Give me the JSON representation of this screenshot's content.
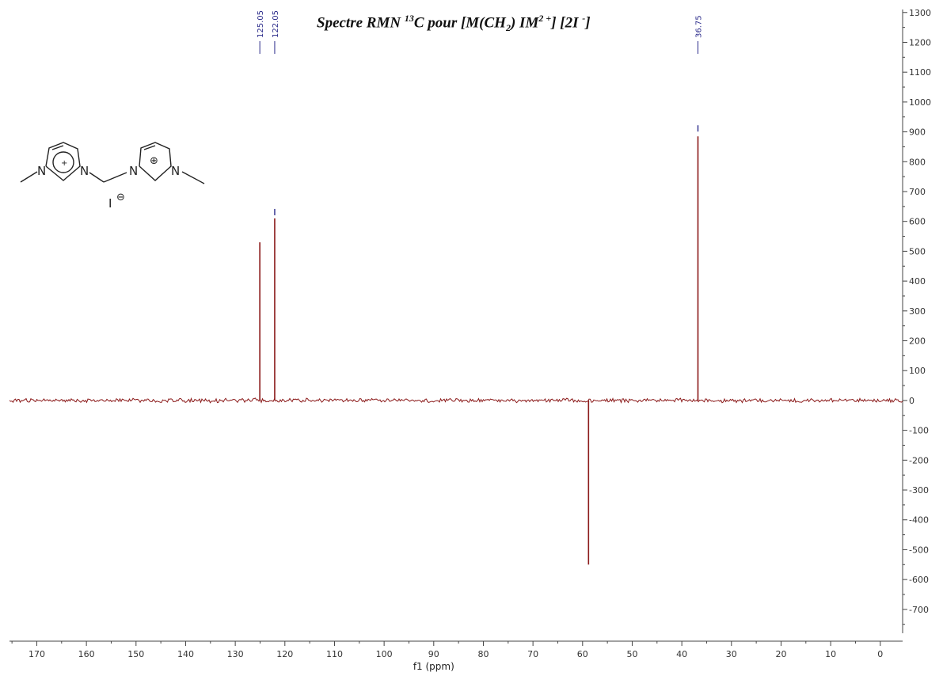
{
  "chart_data": {
    "type": "line",
    "title": {
      "prefix": "Spectre RMN ",
      "isotope": "13",
      "nucleus": "C pour [M(CH",
      "subscript": "2",
      "middle": ") IM",
      "superscript": "2 +",
      "suffix": "] [2I ",
      "superscript2": "-",
      "end": "]"
    },
    "xlabel": "f1 (ppm)",
    "ylabel": "",
    "x_reversed": true,
    "xlim": [
      175.5,
      -4.5
    ],
    "ylim": [
      -780,
      1310
    ],
    "x_ticks": [
      170,
      160,
      150,
      140,
      130,
      120,
      110,
      100,
      90,
      80,
      70,
      60,
      50,
      40,
      30,
      20,
      10,
      0
    ],
    "y_ticks": [
      1300,
      1200,
      1100,
      1000,
      900,
      800,
      700,
      600,
      500,
      400,
      300,
      200,
      100,
      0,
      -100,
      -200,
      -300,
      -400,
      -500,
      -600,
      -700
    ],
    "peaks": [
      {
        "x": 125.05,
        "y": 530
      },
      {
        "x": 122.05,
        "y": 610
      },
      {
        "x": 58.8,
        "y": -550
      },
      {
        "x": 36.75,
        "y": 885
      }
    ],
    "peak_labels": [
      {
        "x": 125.05,
        "text": "125.05"
      },
      {
        "x": 122.05,
        "text": "122.05"
      },
      {
        "x": 36.75,
        "text": "36.75"
      }
    ],
    "series_color": "#8b1a1a",
    "label_color": "#2a2a8a"
  },
  "structure": {
    "atoms": {
      "n1": "N",
      "n2": "N",
      "n3": "N",
      "n4": "N",
      "counterion": "I",
      "charge_minus": "⊖",
      "charge_plus": "⊕"
    }
  }
}
